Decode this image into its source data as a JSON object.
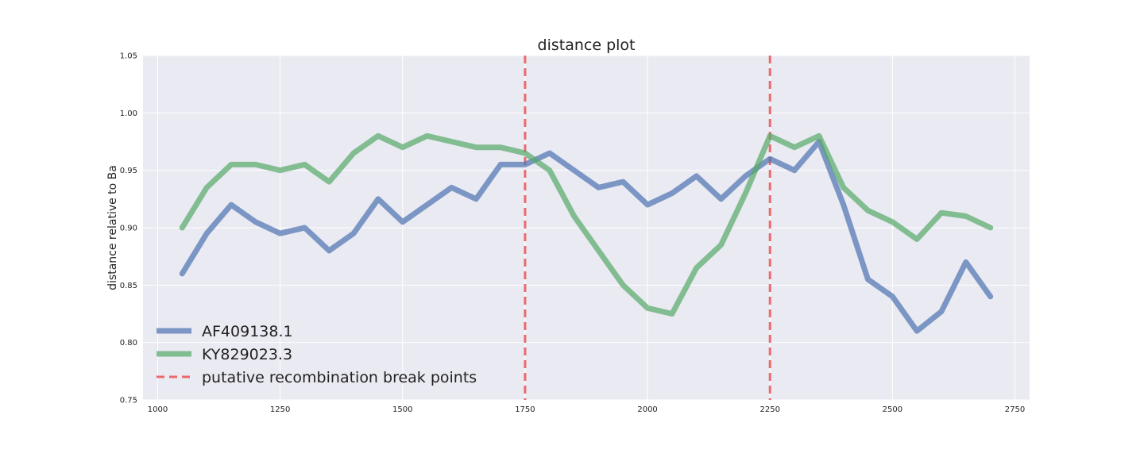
{
  "chart_data": {
    "type": "line",
    "title": "distance plot",
    "xlabel": "",
    "ylabel": "distance relative to Ba",
    "xlim": [
      970,
      2780
    ],
    "ylim": [
      0.75,
      1.05
    ],
    "xticks": [
      1000,
      1250,
      1500,
      1750,
      2000,
      2250,
      2500,
      2750
    ],
    "yticks": [
      0.75,
      0.8,
      0.85,
      0.9,
      0.95,
      1.0,
      1.05
    ],
    "xtick_labels": [
      "1000",
      "1250",
      "1500",
      "1750",
      "2000",
      "2250",
      "2500",
      "2750"
    ],
    "ytick_labels": [
      "0.75",
      "0.80",
      "0.85",
      "0.90",
      "0.95",
      "1.00",
      "1.05"
    ],
    "grid": true,
    "legend_position": "bottom-left",
    "x": [
      1050,
      1100,
      1150,
      1200,
      1250,
      1300,
      1350,
      1400,
      1450,
      1500,
      1550,
      1600,
      1650,
      1700,
      1750,
      1800,
      1850,
      1900,
      1950,
      2000,
      2050,
      2100,
      2150,
      2200,
      2250,
      2300,
      2350,
      2400,
      2450,
      2500,
      2550,
      2600,
      2650,
      2700
    ],
    "series": [
      {
        "name": "AF409138.1",
        "color": "#4c72b0",
        "values": [
          0.86,
          0.895,
          0.92,
          0.905,
          0.895,
          0.9,
          0.88,
          0.895,
          0.925,
          0.905,
          0.92,
          0.935,
          0.925,
          0.955,
          0.955,
          0.965,
          0.95,
          0.935,
          0.94,
          0.92,
          0.93,
          0.945,
          0.925,
          0.945,
          0.96,
          0.95,
          0.975,
          0.92,
          0.855,
          0.84,
          0.81,
          0.827,
          0.87,
          0.84
        ]
      },
      {
        "name": "KY829023.3",
        "color": "#55a868",
        "values": [
          0.9,
          0.935,
          0.955,
          0.955,
          0.95,
          0.955,
          0.94,
          0.965,
          0.98,
          0.97,
          0.98,
          0.975,
          0.97,
          0.97,
          0.965,
          0.95,
          0.91,
          0.88,
          0.85,
          0.83,
          0.825,
          0.865,
          0.885,
          0.93,
          0.98,
          0.97,
          0.98,
          0.935,
          0.915,
          0.905,
          0.89,
          0.913,
          0.91,
          0.9
        ]
      }
    ],
    "vlines": {
      "name": "putative recombination break points",
      "color": "#e8494a",
      "x": [
        1750,
        2250
      ]
    }
  }
}
